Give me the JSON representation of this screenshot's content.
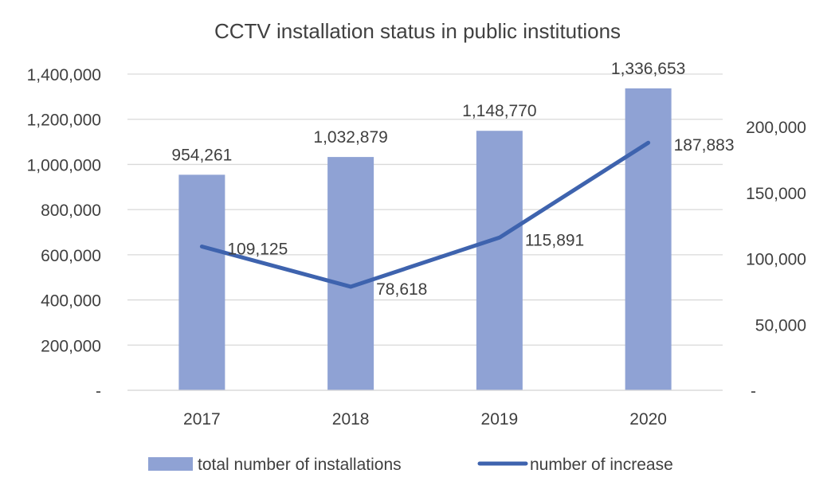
{
  "chart_data": {
    "type": "bar",
    "title": "CCTV installation status in public institutions",
    "categories": [
      "2017",
      "2018",
      "2019",
      "2020"
    ],
    "series": [
      {
        "name": "total number of installations",
        "type": "bar",
        "axis": "left",
        "values": [
          954261,
          1032879,
          1148770,
          1336653
        ],
        "labels": [
          "954,261",
          "1,032,879",
          "1,148,770",
          "1,336,653"
        ],
        "color": "#8FA2D4"
      },
      {
        "name": "number of increase",
        "type": "line",
        "axis": "right",
        "values": [
          109125,
          78618,
          115891,
          187883
        ],
        "labels": [
          "109,125",
          "78,618",
          "115,891",
          "187,883"
        ],
        "color": "#3E63AE"
      }
    ],
    "y_left": {
      "min": 0,
      "max": 1400000,
      "ticks": [
        0,
        200000,
        400000,
        600000,
        800000,
        1000000,
        1200000,
        1400000
      ],
      "tick_labels": [
        "-",
        "200,000",
        "400,000",
        "600,000",
        "800,000",
        "1,000,000",
        "1,200,000",
        "1,400,000"
      ]
    },
    "y_right": {
      "min": 0,
      "max": 240000,
      "ticks": [
        0,
        50000,
        100000,
        150000,
        200000
      ],
      "tick_labels": [
        "-",
        "50,000",
        "100,000",
        "150,000",
        "200,000"
      ]
    },
    "grid": true,
    "legend_position": "bottom",
    "gridline_color": "#D9D9D9"
  }
}
